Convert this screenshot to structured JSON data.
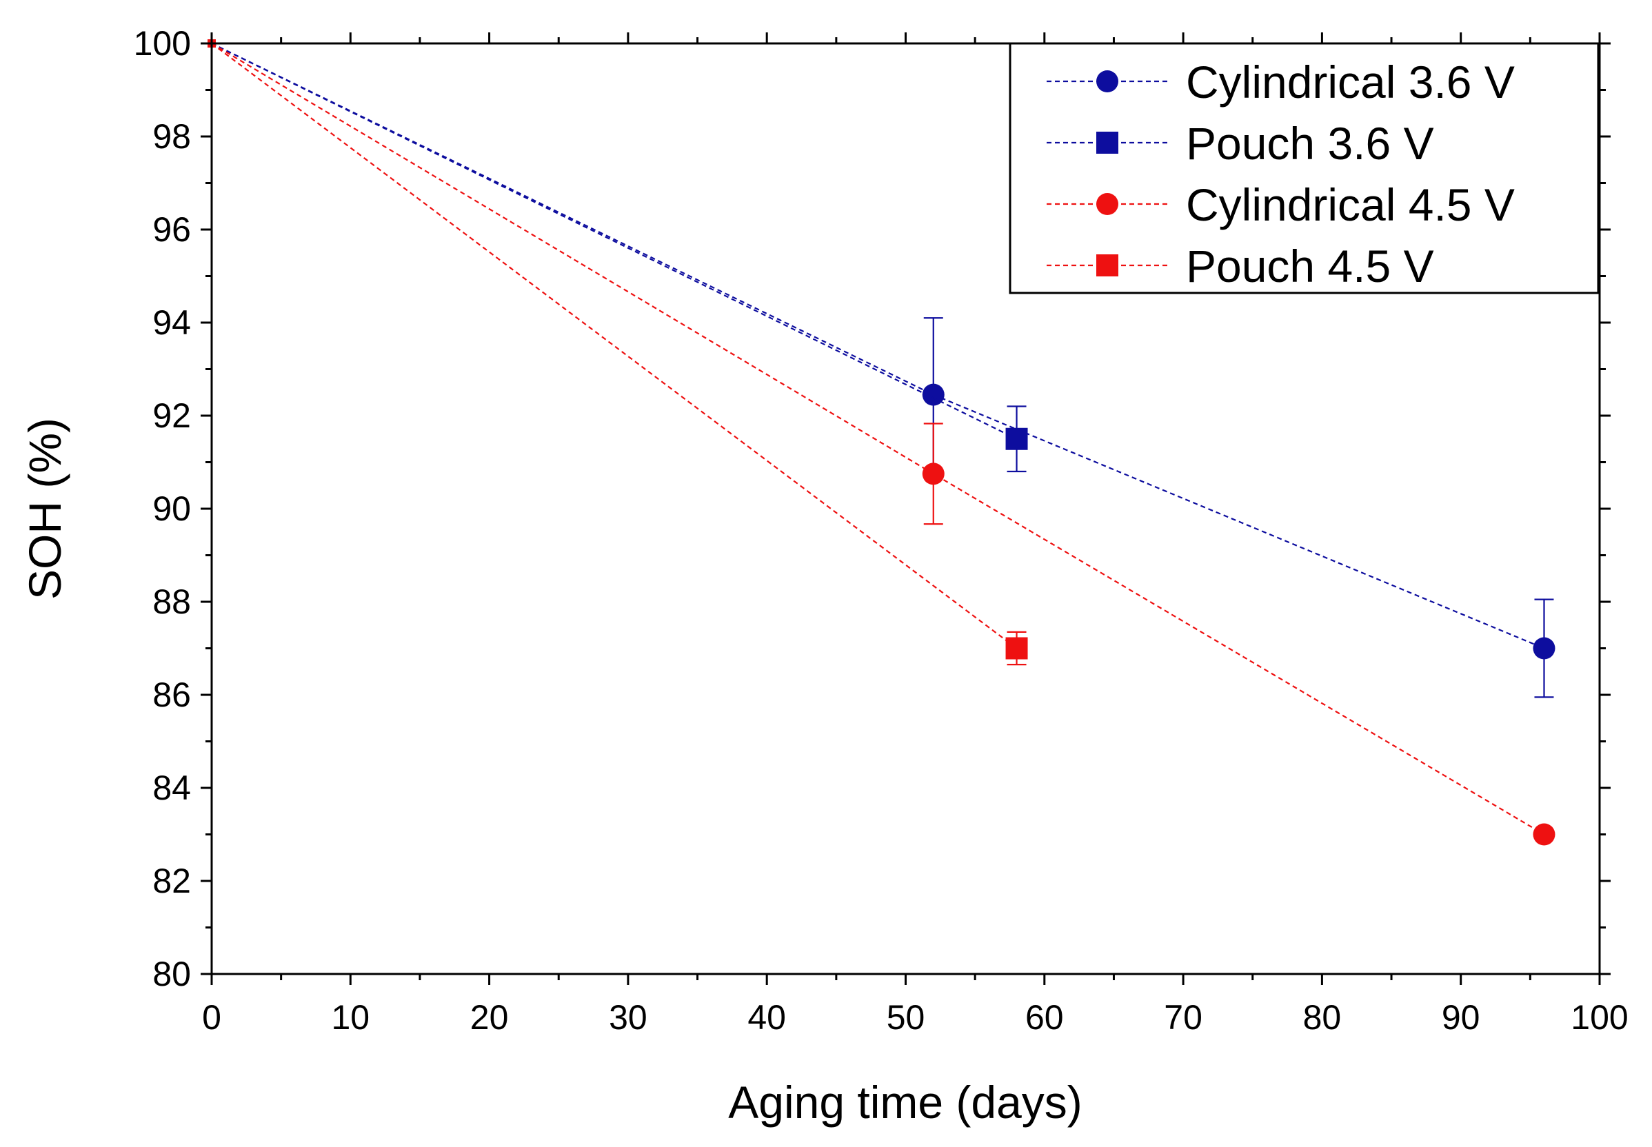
{
  "chart_data": {
    "type": "line",
    "title": "",
    "xlabel": "Aging time (days)",
    "ylabel": "SOH (%)",
    "xlim": [
      0,
      100
    ],
    "ylim": [
      80,
      100
    ],
    "x_ticks": [
      0,
      10,
      20,
      30,
      40,
      50,
      60,
      70,
      80,
      90,
      100
    ],
    "y_ticks": [
      80,
      82,
      84,
      86,
      88,
      90,
      92,
      94,
      96,
      98,
      100
    ],
    "grid": false,
    "legend_position": "top-right",
    "series": [
      {
        "name": "Cylindrical 3.6 V",
        "color": "#0d0d9e",
        "marker": "circle",
        "line_style": "dashed",
        "points": [
          {
            "x": 0,
            "y": 100,
            "err": 0
          },
          {
            "x": 52,
            "y": 92.45,
            "err": 1.65
          },
          {
            "x": 96,
            "y": 87.0,
            "err": 1.05
          }
        ]
      },
      {
        "name": "Pouch 3.6 V",
        "color": "#0d0d9e",
        "marker": "square",
        "line_style": "dashed",
        "points": [
          {
            "x": 0,
            "y": 100,
            "err": 0
          },
          {
            "x": 58,
            "y": 91.5,
            "err": 0.7
          }
        ]
      },
      {
        "name": "Cylindrical 4.5 V",
        "color": "#ee1111",
        "marker": "circle",
        "line_style": "dashed",
        "points": [
          {
            "x": 0,
            "y": 100,
            "err": 0
          },
          {
            "x": 52,
            "y": 90.75,
            "err": 1.08
          },
          {
            "x": 96,
            "y": 83.0,
            "err": 0
          }
        ]
      },
      {
        "name": "Pouch 4.5 V",
        "color": "#ee1111",
        "marker": "square",
        "line_style": "dashed",
        "points": [
          {
            "x": 0,
            "y": 100,
            "err": 0
          },
          {
            "x": 58,
            "y": 87.0,
            "err": 0.35
          }
        ]
      }
    ]
  }
}
